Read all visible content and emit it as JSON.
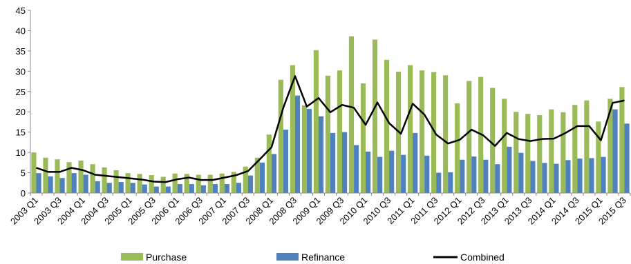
{
  "chart_data": {
    "type": "bar",
    "title": "",
    "xlabel": "",
    "ylabel": "",
    "ylim": [
      0,
      45
    ],
    "yticks": [
      0,
      5,
      10,
      15,
      20,
      25,
      30,
      35,
      40,
      45
    ],
    "grid": false,
    "legend_position": "bottom",
    "categories": [
      "2003 Q1",
      "2003 Q2",
      "2003 Q3",
      "2003 Q4",
      "2004 Q1",
      "2004 Q2",
      "2004 Q3",
      "2004 Q4",
      "2005 Q1",
      "2005 Q2",
      "2005 Q3",
      "2005 Q4",
      "2006 Q1",
      "2006 Q2",
      "2006 Q3",
      "2006 Q4",
      "2007 Q1",
      "2007 Q2",
      "2007 Q3",
      "2007 Q4",
      "2008 Q1",
      "2008 Q2",
      "2008 Q3",
      "2008 Q4",
      "2009 Q1",
      "2009 Q2",
      "2009 Q3",
      "2009 Q4",
      "2010 Q1",
      "2010 Q2",
      "2010 Q3",
      "2010 Q4",
      "2011 Q1",
      "2011 Q2",
      "2011 Q3",
      "2011 Q4",
      "2012 Q1",
      "2012 Q2",
      "2012 Q3",
      "2012 Q4",
      "2013 Q1",
      "2013 Q2",
      "2013 Q3",
      "2013 Q4",
      "2014 Q1",
      "2014 Q2",
      "2014 Q3",
      "2014 Q4",
      "2015 Q1",
      "2015 Q2",
      "2015 Q3"
    ],
    "xtick_labels": [
      "2003 Q1",
      "2003 Q3",
      "2004 Q1",
      "2004 Q3",
      "2005 Q1",
      "2005 Q3",
      "2006 Q1",
      "2006 Q3",
      "2007 Q1",
      "2007 Q3",
      "2008 Q1",
      "2008 Q3",
      "2009 Q1",
      "2009 Q3",
      "2010 Q1",
      "2010 Q3",
      "2011 Q1",
      "2011 Q3",
      "2012 Q1",
      "2012 Q3",
      "2013 Q1",
      "2013 Q3",
      "2014 Q1",
      "2014 Q3",
      "2015 Q1",
      "2015 Q3"
    ],
    "series": [
      {
        "name": "Purchase",
        "kind": "bar",
        "color": "#9bbb59",
        "values": [
          10.0,
          8.7,
          8.3,
          7.6,
          8.0,
          7.1,
          6.3,
          5.6,
          4.9,
          4.7,
          4.4,
          4.0,
          4.8,
          4.7,
          4.5,
          4.5,
          4.8,
          5.2,
          6.5,
          8.7,
          14.4,
          27.9,
          31.5,
          21.6,
          35.2,
          28.9,
          30.2,
          38.6,
          27.0,
          37.8,
          32.8,
          29.9,
          31.5,
          30.2,
          29.8,
          29.0,
          22.1,
          27.6,
          28.6,
          25.9,
          23.2,
          20.0,
          19.5,
          19.2,
          20.6,
          19.9,
          21.7,
          22.8,
          17.6,
          23.2,
          26.1
        ]
      },
      {
        "name": "Refinance",
        "kind": "bar",
        "color": "#4f81bd",
        "values": [
          4.9,
          4.1,
          3.7,
          4.9,
          4.5,
          2.9,
          2.5,
          2.7,
          2.5,
          2.1,
          1.6,
          1.6,
          2.2,
          2.2,
          1.9,
          2.2,
          2.2,
          2.5,
          4.3,
          7.5,
          9.6,
          15.6,
          24.0,
          20.7,
          18.9,
          14.8,
          15.0,
          11.8,
          10.2,
          8.9,
          10.4,
          9.4,
          14.8,
          9.2,
          5.0,
          5.1,
          8.2,
          9.0,
          8.2,
          7.1,
          11.4,
          9.9,
          7.9,
          7.4,
          7.2,
          8.1,
          8.5,
          8.6,
          8.9,
          20.6,
          17.1
        ]
      },
      {
        "name": "Combined",
        "kind": "line",
        "color": "#000000",
        "values": [
          6.2,
          5.2,
          5.2,
          6.2,
          5.6,
          4.5,
          4.2,
          3.9,
          3.6,
          3.3,
          2.8,
          2.7,
          3.4,
          3.8,
          3.2,
          3.2,
          3.8,
          4.4,
          5.4,
          8.3,
          11.3,
          21.0,
          28.8,
          21.3,
          23.4,
          19.9,
          21.7,
          21.0,
          16.8,
          22.3,
          17.2,
          14.6,
          22.0,
          19.3,
          14.4,
          12.2,
          13.1,
          15.6,
          14.2,
          11.6,
          14.8,
          13.3,
          12.8,
          13.3,
          13.4,
          14.8,
          16.5,
          16.5,
          13.0,
          22.2,
          22.8
        ]
      }
    ]
  }
}
